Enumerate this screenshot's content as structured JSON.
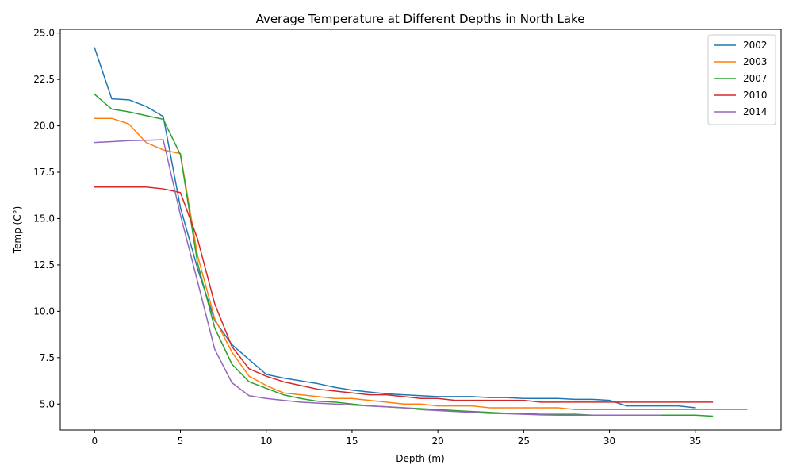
{
  "chart_data": {
    "type": "line",
    "title": "Average Temperature at Different Depths in North Lake",
    "xlabel": "Depth (m)",
    "ylabel": "Temp (C°)",
    "xlim": [
      -2,
      40
    ],
    "ylim": [
      3.6,
      25.2
    ],
    "x_ticks": [
      0,
      5,
      10,
      15,
      20,
      25,
      30,
      35
    ],
    "y_ticks": [
      5.0,
      7.5,
      10.0,
      12.5,
      15.0,
      17.5,
      20.0,
      22.5,
      25.0
    ],
    "grid": false,
    "legend_position": "top-right",
    "series": [
      {
        "name": "2002",
        "color": "#1f77b4",
        "x": [
          0,
          1,
          2,
          3,
          4,
          5,
          6,
          7,
          8,
          9,
          10,
          11,
          12,
          13,
          14,
          15,
          16,
          17,
          18,
          19,
          20,
          21,
          22,
          23,
          24,
          25,
          26,
          27,
          28,
          29,
          30,
          31,
          32,
          33,
          34,
          35
        ],
        "y": [
          24.2,
          21.45,
          21.4,
          21.05,
          20.5,
          15.6,
          12.3,
          9.5,
          8.2,
          7.4,
          6.6,
          6.4,
          6.25,
          6.1,
          5.9,
          5.75,
          5.65,
          5.55,
          5.5,
          5.45,
          5.4,
          5.4,
          5.4,
          5.35,
          5.35,
          5.3,
          5.3,
          5.3,
          5.25,
          5.25,
          5.2,
          4.9,
          4.9,
          4.9,
          4.9,
          4.8
        ]
      },
      {
        "name": "2003",
        "color": "#ff7f0e",
        "x": [
          0,
          1,
          2,
          3,
          4,
          5,
          6,
          7,
          8,
          9,
          10,
          11,
          12,
          13,
          14,
          15,
          16,
          17,
          18,
          19,
          20,
          21,
          22,
          23,
          24,
          25,
          26,
          27,
          28,
          29,
          30,
          31,
          32,
          33,
          34,
          35,
          36,
          37,
          38
        ],
        "y": [
          20.4,
          20.4,
          20.1,
          19.1,
          18.7,
          18.5,
          13.0,
          9.6,
          7.8,
          6.5,
          6.0,
          5.6,
          5.5,
          5.4,
          5.3,
          5.3,
          5.2,
          5.1,
          5.0,
          5.0,
          4.9,
          4.9,
          4.9,
          4.8,
          4.8,
          4.8,
          4.8,
          4.8,
          4.7,
          4.7,
          4.7,
          4.7,
          4.7,
          4.7,
          4.7,
          4.7,
          4.7,
          4.7,
          4.7
        ]
      },
      {
        "name": "2007",
        "color": "#2ca02c",
        "x": [
          0,
          1,
          2,
          3,
          4,
          5,
          6,
          7,
          8,
          9,
          10,
          11,
          12,
          13,
          14,
          15,
          16,
          17,
          18,
          19,
          20,
          21,
          22,
          23,
          24,
          25,
          26,
          27,
          28,
          29,
          30,
          31,
          32,
          33,
          34,
          35,
          36
        ],
        "y": [
          21.7,
          20.9,
          20.75,
          20.55,
          20.35,
          18.45,
          12.6,
          9.1,
          7.15,
          6.2,
          5.85,
          5.5,
          5.3,
          5.15,
          5.1,
          5.0,
          4.9,
          4.85,
          4.8,
          4.75,
          4.7,
          4.65,
          4.6,
          4.55,
          4.5,
          4.5,
          4.45,
          4.45,
          4.45,
          4.4,
          4.4,
          4.4,
          4.4,
          4.4,
          4.4,
          4.4,
          4.35
        ]
      },
      {
        "name": "2010",
        "color": "#d62728",
        "x": [
          0,
          1,
          2,
          3,
          4,
          5,
          6,
          7,
          8,
          9,
          10,
          11,
          12,
          13,
          14,
          15,
          16,
          17,
          18,
          19,
          20,
          21,
          22,
          23,
          24,
          25,
          26,
          27,
          28,
          29,
          30,
          31,
          32,
          33,
          34,
          35,
          36
        ],
        "y": [
          16.7,
          16.7,
          16.7,
          16.7,
          16.6,
          16.4,
          13.9,
          10.4,
          8.1,
          6.9,
          6.5,
          6.2,
          6.0,
          5.8,
          5.7,
          5.6,
          5.5,
          5.5,
          5.4,
          5.3,
          5.3,
          5.2,
          5.2,
          5.2,
          5.2,
          5.2,
          5.1,
          5.1,
          5.1,
          5.1,
          5.1,
          5.1,
          5.1,
          5.1,
          5.1,
          5.1,
          5.1
        ]
      },
      {
        "name": "2014",
        "color": "#9467bd",
        "x": [
          0,
          1,
          2,
          3,
          4,
          5,
          6,
          7,
          8,
          9,
          10,
          11,
          12,
          13,
          14,
          15,
          16,
          17,
          18,
          19,
          20,
          21,
          22,
          23,
          24,
          25,
          26,
          27,
          28,
          29,
          30,
          31,
          32,
          33
        ],
        "y": [
          19.1,
          19.15,
          19.2,
          19.22,
          19.25,
          15.2,
          11.6,
          7.95,
          6.15,
          5.45,
          5.3,
          5.2,
          5.1,
          5.05,
          5.0,
          4.95,
          4.9,
          4.85,
          4.8,
          4.7,
          4.65,
          4.6,
          4.55,
          4.5,
          4.48,
          4.45,
          4.42,
          4.4,
          4.4,
          4.4,
          4.4,
          4.4,
          4.4,
          4.4
        ]
      }
    ]
  }
}
